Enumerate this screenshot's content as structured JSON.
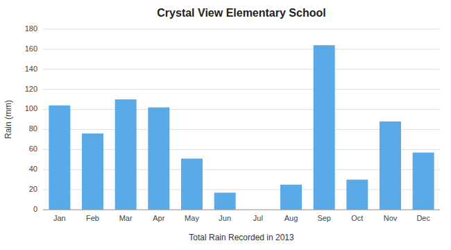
{
  "chart_data": {
    "type": "bar",
    "title": "Crystal View Elementary School",
    "xlabel": "Total Rain Recorded in 2013",
    "ylabel": "Rain (mm)",
    "categories": [
      "Jan",
      "Feb",
      "Mar",
      "Apr",
      "May",
      "Jun",
      "Jul",
      "Aug",
      "Sep",
      "Oct",
      "Nov",
      "Dec"
    ],
    "values": [
      104,
      76,
      110,
      102,
      51,
      17,
      0,
      25,
      164,
      30,
      88,
      57
    ],
    "color": "#5aaae8",
    "ylim": [
      0,
      180
    ],
    "yticks": [
      0,
      20,
      40,
      60,
      80,
      100,
      120,
      140,
      160,
      180
    ],
    "grid": true
  }
}
